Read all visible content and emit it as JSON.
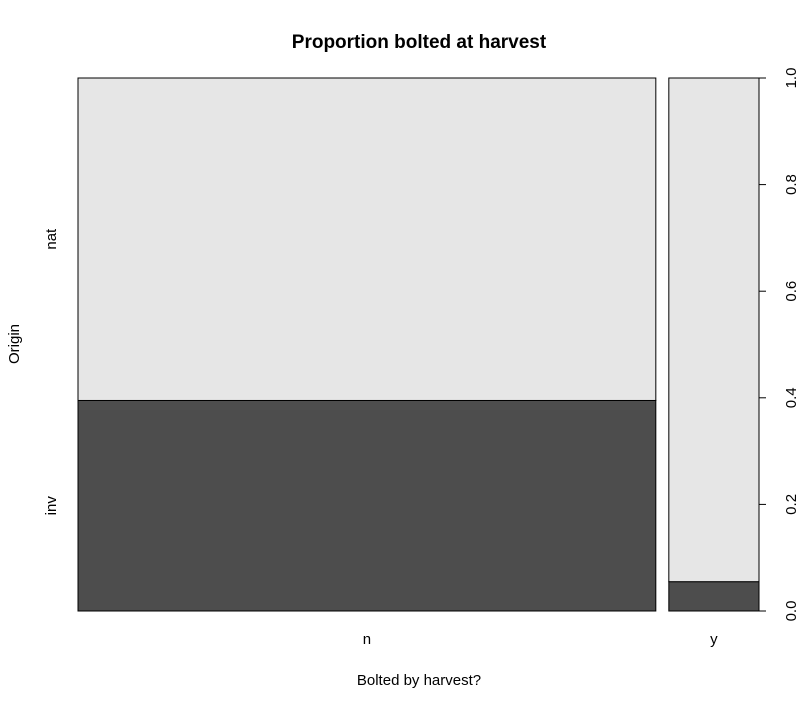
{
  "chart_data": {
    "type": "spineplot",
    "title": "Proportion bolted at harvest",
    "xlabel": "Bolted by harvest?",
    "ylabel": "Origin",
    "categories": [
      "n",
      "y"
    ],
    "category_widths": [
      0.865,
      0.135
    ],
    "groups": [
      "inv",
      "nat"
    ],
    "series": [
      {
        "name": "inv",
        "values": [
          0.395,
          0.055
        ],
        "color": "#4d4d4d"
      },
      {
        "name": "nat",
        "values": [
          0.605,
          0.945
        ],
        "color": "#e6e6e6"
      }
    ],
    "right_axis": {
      "ylim": [
        0,
        1
      ],
      "ticks": [
        "0.0",
        "0.2",
        "0.4",
        "0.6",
        "0.8",
        "1.0"
      ]
    }
  }
}
